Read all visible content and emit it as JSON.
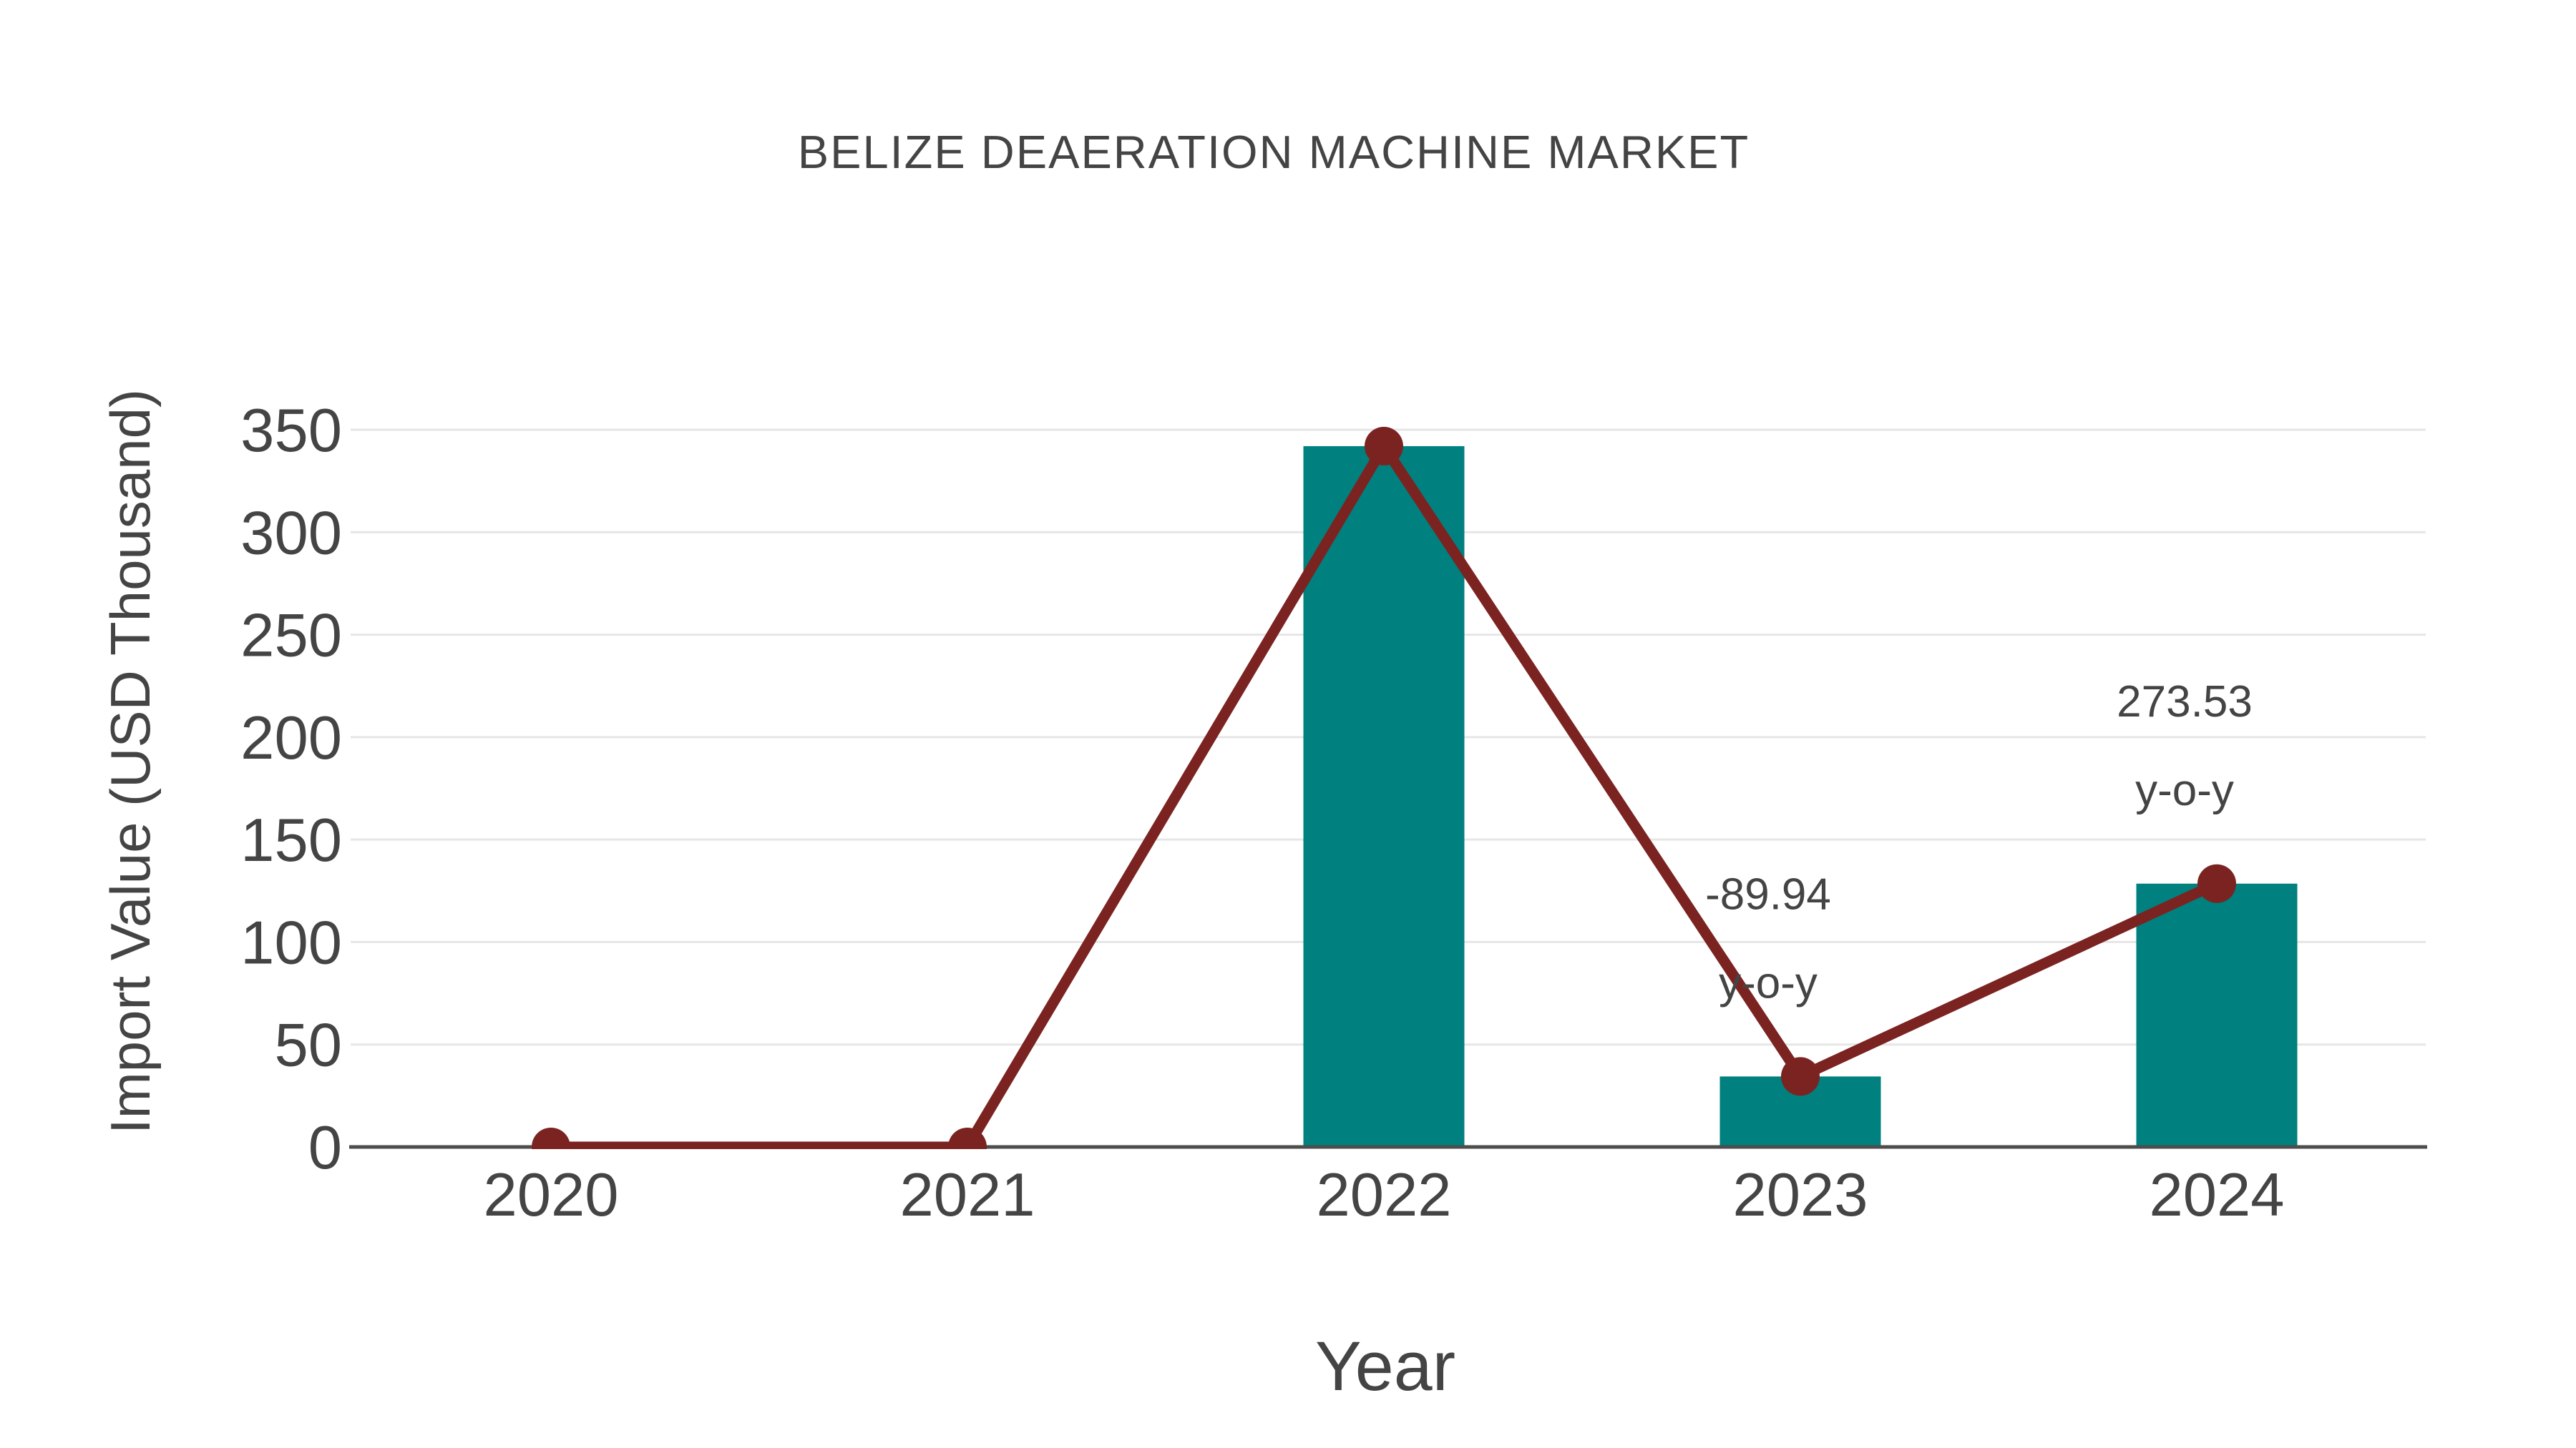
{
  "page": {
    "background": "#ffffff"
  },
  "chart_data": {
    "type": "bar",
    "subtype": "bar-with-line-overlay",
    "title": "BELIZE DEAERATION MACHINE MARKET",
    "xlabel": "Year",
    "ylabel": "Import Value (USD Thousand)",
    "categories": [
      "2020",
      "2021",
      "2022",
      "2023",
      "2024"
    ],
    "series": [
      {
        "name": "import-value-bars",
        "type": "bar",
        "color": "#00807E",
        "values": [
          0,
          0,
          342,
          34.4,
          128.5
        ]
      },
      {
        "name": "import-value-line",
        "type": "line",
        "color": "#7B2321",
        "values": [
          0,
          0,
          342,
          34.4,
          128.5
        ]
      }
    ],
    "annotations": [
      {
        "category": "2023",
        "lines": [
          "-89.94",
          "y-o-y"
        ]
      },
      {
        "category": "2024",
        "lines": [
          "273.53",
          "y-o-y"
        ]
      }
    ],
    "ylim": [
      0,
      350
    ],
    "ytick_step": 50,
    "yticks": [
      0,
      50,
      100,
      150,
      200,
      250,
      300,
      350
    ],
    "grid": true,
    "legend_position": "none",
    "axis_color": "#4D4D4D",
    "grid_color": "#E6E6E6",
    "text_color": "#444444"
  }
}
